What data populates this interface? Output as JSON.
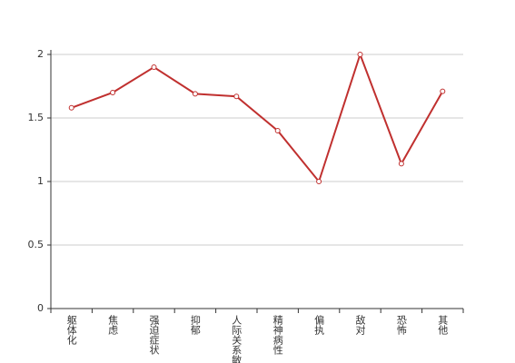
{
  "chart_data": {
    "type": "line",
    "categories": [
      "躯体化",
      "焦虑",
      "强迫症状",
      "抑郁",
      "人际关系敏感",
      "精神病性",
      "偏执",
      "敌对",
      "恐怖",
      "其他"
    ],
    "values": [
      1.58,
      1.7,
      1.9,
      1.69,
      1.67,
      1.4,
      1.0,
      2.0,
      1.14,
      1.71
    ],
    "color": "#c0302f",
    "ylim": [
      0,
      2
    ],
    "yticks": [
      0,
      0.5,
      1,
      1.5,
      2
    ],
    "grid": true
  }
}
